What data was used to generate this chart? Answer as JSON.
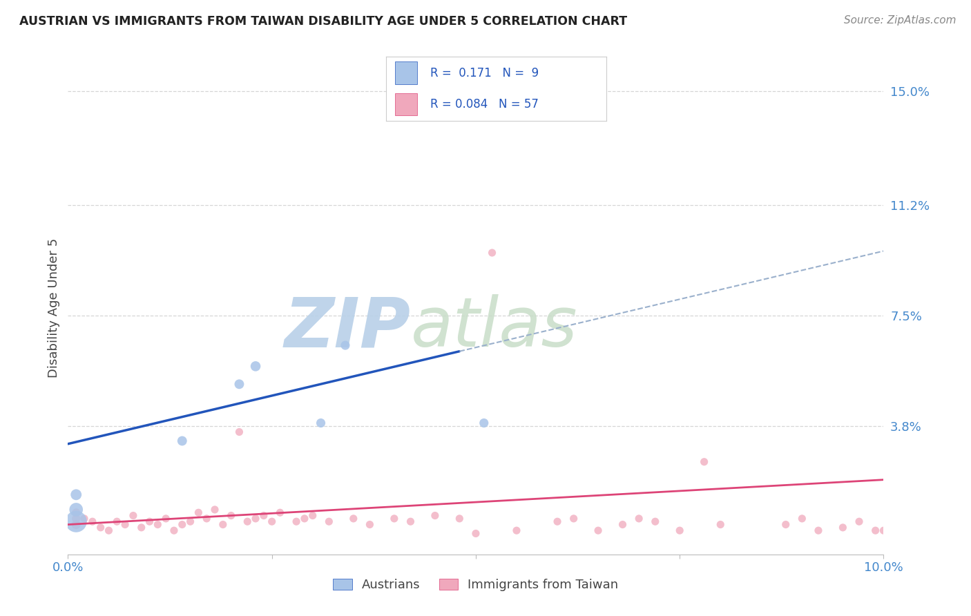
{
  "title": "AUSTRIAN VS IMMIGRANTS FROM TAIWAN DISABILITY AGE UNDER 5 CORRELATION CHART",
  "source": "Source: ZipAtlas.com",
  "ylabel": "Disability Age Under 5",
  "xlim": [
    0.0,
    0.1
  ],
  "ylim": [
    -0.005,
    0.16
  ],
  "yticks": [
    0.038,
    0.075,
    0.112,
    0.15
  ],
  "ytick_labels": [
    "3.8%",
    "7.5%",
    "11.2%",
    "15.0%"
  ],
  "xticks": [
    0.0,
    0.025,
    0.05,
    0.075,
    0.1
  ],
  "xtick_labels": [
    "0.0%",
    "",
    "",
    "",
    "10.0%"
  ],
  "background_color": "#ffffff",
  "grid_color": "#cccccc",
  "watermark_zip": "ZIP",
  "watermark_atlas": "atlas",
  "watermark_color": "#c8dff5",
  "austrians_color": "#a8c4e8",
  "taiwan_color": "#f0a8bc",
  "line_austrians_color": "#2255bb",
  "line_taiwan_color": "#dd4477",
  "dash_color": "#9ab0cc",
  "legend_R_austrians": "0.171",
  "legend_N_austrians": "9",
  "legend_R_taiwan": "0.084",
  "legend_N_taiwan": "57",
  "legend_text_color": "#2255bb",
  "legend_box_color": "#dddddd",
  "austrians_x": [
    0.001,
    0.001,
    0.001,
    0.014,
    0.021,
    0.023,
    0.031,
    0.034,
    0.051
  ],
  "austrians_y": [
    0.006,
    0.01,
    0.015,
    0.033,
    0.052,
    0.058,
    0.039,
    0.065,
    0.039
  ],
  "austrians_s": [
    500,
    200,
    130,
    100,
    100,
    110,
    90,
    90,
    90
  ],
  "taiwan_x": [
    0.001,
    0.001,
    0.001,
    0.002,
    0.003,
    0.004,
    0.005,
    0.006,
    0.007,
    0.008,
    0.009,
    0.01,
    0.011,
    0.012,
    0.013,
    0.014,
    0.015,
    0.016,
    0.017,
    0.018,
    0.019,
    0.02,
    0.021,
    0.022,
    0.023,
    0.024,
    0.025,
    0.026,
    0.028,
    0.029,
    0.03,
    0.032,
    0.035,
    0.037,
    0.04,
    0.042,
    0.045,
    0.048,
    0.05,
    0.055,
    0.06,
    0.062,
    0.065,
    0.068,
    0.07,
    0.072,
    0.075,
    0.078,
    0.08,
    0.052,
    0.088,
    0.09,
    0.092,
    0.095,
    0.097,
    0.099,
    0.1
  ],
  "taiwan_y": [
    0.005,
    0.007,
    0.009,
    0.007,
    0.006,
    0.004,
    0.003,
    0.006,
    0.005,
    0.008,
    0.004,
    0.006,
    0.005,
    0.007,
    0.003,
    0.005,
    0.006,
    0.009,
    0.007,
    0.01,
    0.005,
    0.008,
    0.036,
    0.006,
    0.007,
    0.008,
    0.006,
    0.009,
    0.006,
    0.007,
    0.008,
    0.006,
    0.007,
    0.005,
    0.007,
    0.006,
    0.008,
    0.007,
    0.002,
    0.003,
    0.006,
    0.007,
    0.003,
    0.005,
    0.007,
    0.006,
    0.003,
    0.026,
    0.005,
    0.096,
    0.005,
    0.007,
    0.003,
    0.004,
    0.006,
    0.003,
    0.003
  ],
  "taiwan_s": [
    90,
    80,
    75,
    65,
    65,
    65,
    65,
    65,
    65,
    65,
    65,
    65,
    65,
    65,
    65,
    65,
    65,
    65,
    65,
    65,
    65,
    65,
    65,
    65,
    65,
    65,
    65,
    65,
    65,
    65,
    65,
    65,
    65,
    65,
    65,
    65,
    65,
    65,
    65,
    65,
    65,
    65,
    65,
    65,
    65,
    65,
    65,
    65,
    65,
    65,
    65,
    65,
    65,
    65,
    65,
    65,
    65
  ],
  "line_aus_x0": 0.0,
  "line_aus_x1": 0.048,
  "line_aus_dash_x0": 0.048,
  "line_aus_dash_x1": 0.1,
  "line_aus_y0": 0.032,
  "line_aus_y1": 0.063,
  "line_tai_x0": 0.0,
  "line_tai_x1": 0.1,
  "line_tai_y0": 0.005,
  "line_tai_y1": 0.02
}
